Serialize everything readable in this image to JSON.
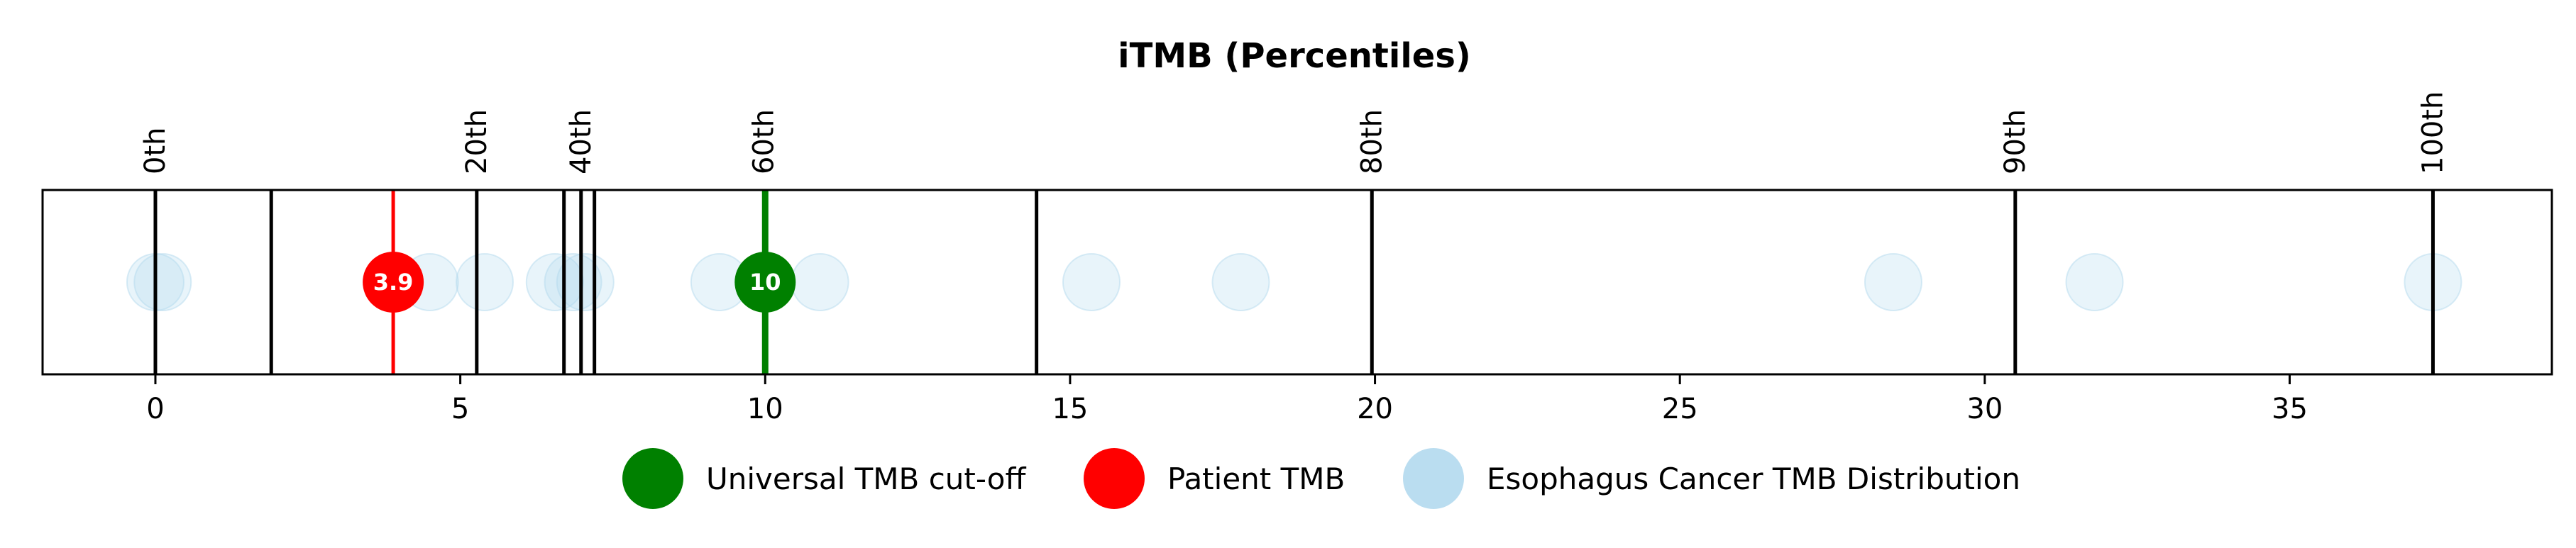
{
  "chart_data": {
    "type": "scatter",
    "title": "iTMB (Percentiles)",
    "xlabel": "",
    "ylabel": "",
    "xlim": [
      -1.85,
      39.3
    ],
    "x_ticks": [
      0,
      5,
      10,
      15,
      20,
      25,
      30,
      35
    ],
    "grid": false,
    "legend_position": "bottom",
    "percentile_lines": [
      {
        "label": "0th",
        "x": 0.0
      },
      {
        "label": "",
        "x": 1.9
      },
      {
        "label": "20th",
        "x": 5.27
      },
      {
        "label": "",
        "x": 6.7
      },
      {
        "label": "40th",
        "x": 6.98
      },
      {
        "label": "",
        "x": 7.2
      },
      {
        "label": "60th",
        "x": 9.98
      },
      {
        "label": "",
        "x": 14.45
      },
      {
        "label": "80th",
        "x": 19.95
      },
      {
        "label": "90th",
        "x": 30.5
      },
      {
        "label": "100th",
        "x": 37.35
      }
    ],
    "distribution": {
      "name": "Esophagus Cancer TMB Distribution",
      "color": "#b3d9ee",
      "x": [
        0.0,
        0.12,
        4.5,
        5.4,
        6.55,
        6.85,
        7.05,
        9.25,
        10.9,
        15.35,
        17.8,
        28.5,
        31.8,
        37.35
      ]
    },
    "patient": {
      "name": "Patient TMB",
      "value": 3.9,
      "label": "3.9",
      "color": "#ff0000"
    },
    "cutoff": {
      "name": "Universal TMB cut-off",
      "value": 10,
      "label": "10",
      "color": "#008000"
    },
    "legend": [
      {
        "label": "Universal TMB cut-off",
        "color": "#008000"
      },
      {
        "label": "Patient TMB",
        "color": "#ff0000"
      },
      {
        "label": "Esophagus Cancer TMB Distribution",
        "color": "#b3d9ee"
      }
    ]
  }
}
